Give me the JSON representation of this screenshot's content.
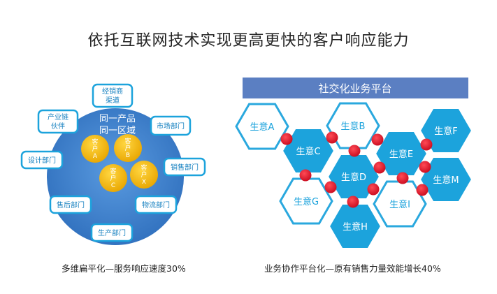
{
  "title": "依托互联网技术实现更高更快的客户响应能力",
  "left": {
    "center_line1": "同一产品",
    "center_line2": "同一区域",
    "caption": "多维扁平化—服务响应速度30%",
    "departments": [
      {
        "line1": "经销商",
        "line2": "渠道"
      },
      {
        "line1": "产业链",
        "line2": "伙伴"
      },
      {
        "line1": "市场部门",
        "line2": ""
      },
      {
        "line1": "设计部门",
        "line2": ""
      },
      {
        "line1": "销售部门",
        "line2": ""
      },
      {
        "line1": "售后部门",
        "line2": ""
      },
      {
        "line1": "物流部门",
        "line2": ""
      },
      {
        "line1": "生产部门",
        "line2": ""
      }
    ],
    "customers": [
      {
        "lines": [
          "客",
          "户",
          "A"
        ]
      },
      {
        "lines": [
          "客",
          "户",
          "B"
        ]
      },
      {
        "lines": [
          "客",
          "户",
          "C"
        ]
      },
      {
        "lines": [
          "客",
          "户",
          "X"
        ]
      }
    ]
  },
  "right": {
    "header": "社交化业务平台",
    "caption": "业务协作平台化—原有销售力量效能增长40%",
    "hexagons": [
      {
        "label": "生意A",
        "filled": false
      },
      {
        "label": "生意B",
        "filled": false
      },
      {
        "label": "生意C",
        "filled": true
      },
      {
        "label": "生意D",
        "filled": true
      },
      {
        "label": "生意E",
        "filled": true
      },
      {
        "label": "生意F",
        "filled": true
      },
      {
        "label": "生意G",
        "filled": false
      },
      {
        "label": "生意H",
        "filled": true
      },
      {
        "label": "生意I",
        "filled": false
      },
      {
        "label": "生意M",
        "filled": true
      }
    ]
  },
  "colors": {
    "blue": "#1ca3dc",
    "circle": "#3a7fc9",
    "gold": "#f3b710",
    "header": "#5b7fc2",
    "dot": "#e5122c"
  }
}
